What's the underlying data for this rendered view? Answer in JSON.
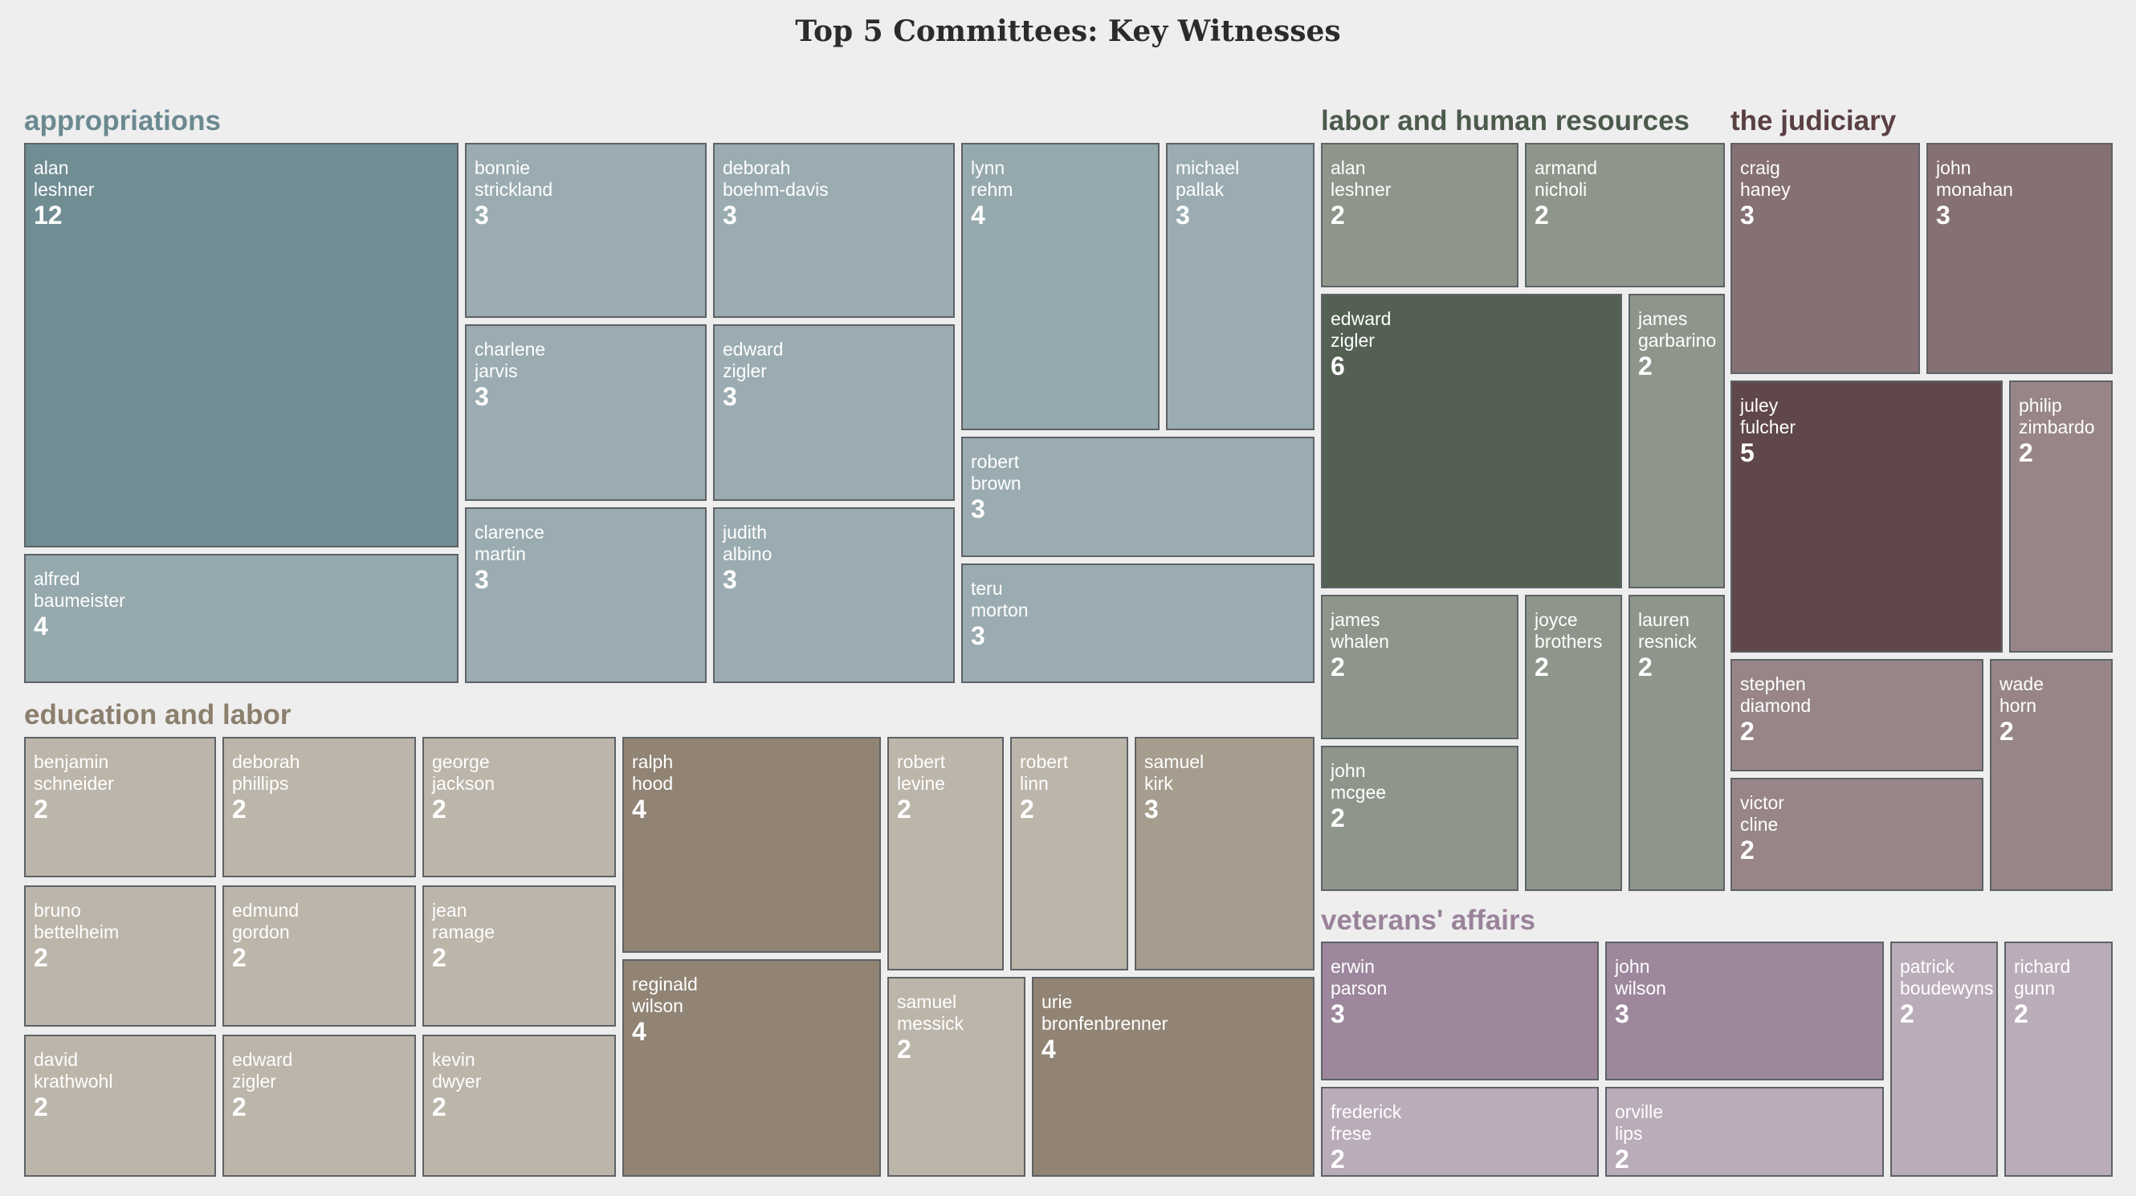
{
  "title": "Top 5 Committees: Key Witnesses",
  "chart_data": {
    "type": "treemap",
    "title": "Top 5 Committees: Key Witnesses",
    "groups": [
      {
        "name": "appropriations",
        "color": "#6b8991",
        "cell_color": "#9aacb1",
        "items": [
          {
            "label": "alan\nleshner",
            "value": 12
          },
          {
            "label": "alfred\nbaumeister",
            "value": 4
          },
          {
            "label": "bonnie\nstrickland",
            "value": 3
          },
          {
            "label": "charlene\njarvis",
            "value": 3
          },
          {
            "label": "clarence\nmartin",
            "value": 3
          },
          {
            "label": "deborah\nboehm-davis",
            "value": 3
          },
          {
            "label": "edward\nzigler",
            "value": 3
          },
          {
            "label": "judith\nalbino",
            "value": 3
          },
          {
            "label": "lynn\nrehm",
            "value": 4
          },
          {
            "label": "michael\npallak",
            "value": 3
          },
          {
            "label": "robert\nbrown",
            "value": 3
          },
          {
            "label": "teru\nmorton",
            "value": 3
          }
        ]
      },
      {
        "name": "education and labor",
        "color": "#8c7f6e",
        "cell_color": "#bcb5a9",
        "items": [
          {
            "label": "benjamin\nschneider",
            "value": 2
          },
          {
            "label": "bruno\nbettelheim",
            "value": 2
          },
          {
            "label": "david\nkrathwohl",
            "value": 2
          },
          {
            "label": "deborah\nphillips",
            "value": 2
          },
          {
            "label": "edmund\ngordon",
            "value": 2
          },
          {
            "label": "edward\nzigler",
            "value": 2
          },
          {
            "label": "george\njackson",
            "value": 2
          },
          {
            "label": "jean\nramage",
            "value": 2
          },
          {
            "label": "kevin\ndwyer",
            "value": 2
          },
          {
            "label": "ralph\nhood",
            "value": 4
          },
          {
            "label": "reginald\nwilson",
            "value": 4
          },
          {
            "label": "robert\nlevine",
            "value": 2
          },
          {
            "label": "robert\nlinn",
            "value": 2
          },
          {
            "label": "samuel\nkirk",
            "value": 3
          },
          {
            "label": "samuel\nmessick",
            "value": 2
          },
          {
            "label": "urie\nbronfenbrenner",
            "value": 4
          }
        ]
      },
      {
        "name": "labor and human resources",
        "color": "#4c5a4c",
        "cell_color": "#8e968b",
        "items": [
          {
            "label": "alan\nleshner",
            "value": 2
          },
          {
            "label": "armand\nnicholi",
            "value": 2
          },
          {
            "label": "edward\nzigler",
            "value": 6
          },
          {
            "label": "james\ngarbarino",
            "value": 2
          },
          {
            "label": "james\nwhalen",
            "value": 2
          },
          {
            "label": "john\nmcgee",
            "value": 2
          },
          {
            "label": "joyce\nbrothers",
            "value": 2
          },
          {
            "label": "lauren\nresnick",
            "value": 2
          }
        ]
      },
      {
        "name": "the judiciary",
        "color": "#5a4043",
        "cell_color": "#978587",
        "items": [
          {
            "label": "craig\nhaney",
            "value": 3
          },
          {
            "label": "john\nmonahan",
            "value": 3
          },
          {
            "label": "juley\nfulcher",
            "value": 5
          },
          {
            "label": "philip\nzimbardo",
            "value": 2
          },
          {
            "label": "stephen\ndiamond",
            "value": 2
          },
          {
            "label": "victor\ncline",
            "value": 2
          },
          {
            "label": "wade\nhorn",
            "value": 2
          }
        ]
      },
      {
        "name": "veterans' affairs",
        "color": "#9a839a",
        "cell_color": "#bbacba",
        "items": [
          {
            "label": "erwin\nparson",
            "value": 3
          },
          {
            "label": "frederick\nfrese",
            "value": 2
          },
          {
            "label": "john\nwilson",
            "value": 3
          },
          {
            "label": "orville\nlips",
            "value": 2
          },
          {
            "label": "patrick\nboudewyns",
            "value": 2
          },
          {
            "label": "richard\ngunn",
            "value": 2
          }
        ]
      }
    ]
  }
}
